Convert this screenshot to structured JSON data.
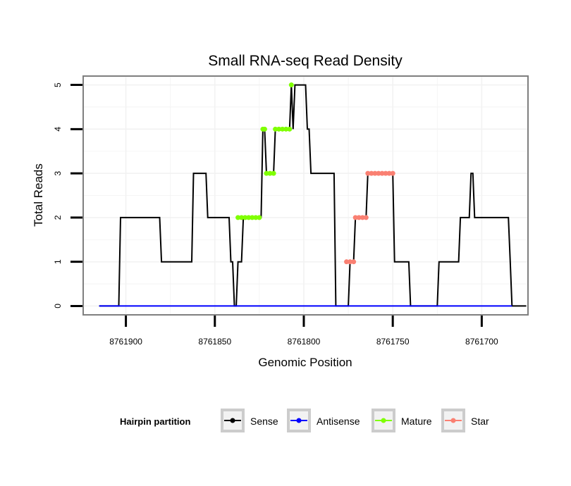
{
  "chart_data": {
    "type": "line",
    "title": "Small RNA-seq Read Density",
    "xlabel": "Genomic Position",
    "ylabel": "Total Reads",
    "xlim": [
      8761924,
      8761674
    ],
    "x_reversed": true,
    "ylim": [
      -0.2,
      5.2
    ],
    "x_ticks": [
      8761900,
      8761850,
      8761800,
      8761750,
      8761700
    ],
    "x_tick_labels": [
      "8761900",
      "8761850",
      "8761800",
      "8761750",
      "8761700"
    ],
    "y_ticks": [
      0,
      1,
      2,
      3,
      4,
      5
    ],
    "y_tick_labels": [
      "0",
      "1",
      "2",
      "3",
      "4",
      "5"
    ],
    "grid": true,
    "legend": {
      "title": "Hairpin partition",
      "placement": "bottom",
      "entries": [
        {
          "label": "Sense",
          "color": "#000000"
        },
        {
          "label": "Antisense",
          "color": "#0000ff"
        },
        {
          "label": "Mature",
          "color": "#7fff00"
        },
        {
          "label": "Star",
          "color": "#fa8072"
        }
      ]
    },
    "series": [
      {
        "name": "Sense",
        "color": "#000000",
        "kind": "line",
        "points": [
          [
            8761915,
            0
          ],
          [
            8761904,
            0
          ],
          [
            8761903,
            2
          ],
          [
            8761881,
            2
          ],
          [
            8761880,
            1
          ],
          [
            8761863,
            1
          ],
          [
            8761862,
            3
          ],
          [
            8761855,
            3
          ],
          [
            8761854,
            2
          ],
          [
            8761842,
            2
          ],
          [
            8761841,
            1
          ],
          [
            8761840,
            1
          ],
          [
            8761839,
            0
          ],
          [
            8761838,
            0
          ],
          [
            8761837,
            1
          ],
          [
            8761835,
            1
          ],
          [
            8761834,
            2
          ],
          [
            8761824,
            2
          ],
          [
            8761823,
            4
          ],
          [
            8761822,
            4
          ],
          [
            8761821,
            3
          ],
          [
            8761817,
            3
          ],
          [
            8761816,
            4
          ],
          [
            8761808,
            4
          ],
          [
            8761807,
            5
          ],
          [
            8761806,
            4
          ],
          [
            8761805,
            5
          ],
          [
            8761799,
            5
          ],
          [
            8761798,
            4
          ],
          [
            8761797,
            4
          ],
          [
            8761796,
            3
          ],
          [
            8761783,
            3
          ],
          [
            8761782,
            0
          ],
          [
            8761775,
            0
          ],
          [
            8761774,
            1
          ],
          [
            8761772,
            1
          ],
          [
            8761771,
            2
          ],
          [
            8761765,
            2
          ],
          [
            8761764,
            3
          ],
          [
            8761750,
            3
          ],
          [
            8761749,
            1
          ],
          [
            8761741,
            1
          ],
          [
            8761740,
            0
          ],
          [
            8761725,
            0
          ],
          [
            8761724,
            1
          ],
          [
            8761713,
            1
          ],
          [
            8761712,
            2
          ],
          [
            8761707,
            2
          ],
          [
            8761706,
            3
          ],
          [
            8761705,
            3
          ],
          [
            8761704,
            2
          ],
          [
            8761685,
            2
          ],
          [
            8761684,
            1
          ],
          [
            8761683,
            0
          ],
          [
            8761675,
            0
          ]
        ]
      },
      {
        "name": "Antisense",
        "color": "#0000ff",
        "kind": "line",
        "points": [
          [
            8761915,
            0
          ],
          [
            8761683,
            0
          ]
        ]
      },
      {
        "name": "Mature",
        "color": "#7fff00",
        "kind": "points",
        "points": [
          [
            8761837,
            2
          ],
          [
            8761835,
            2
          ],
          [
            8761833,
            2
          ],
          [
            8761831,
            2
          ],
          [
            8761829,
            2
          ],
          [
            8761827,
            2
          ],
          [
            8761825,
            2
          ],
          [
            8761823,
            4
          ],
          [
            8761822,
            4
          ],
          [
            8761821,
            3
          ],
          [
            8761819,
            3
          ],
          [
            8761817,
            3
          ],
          [
            8761816,
            4
          ],
          [
            8761814,
            4
          ],
          [
            8761812,
            4
          ],
          [
            8761810,
            4
          ],
          [
            8761808,
            4
          ],
          [
            8761807,
            5
          ]
        ]
      },
      {
        "name": "Star",
        "color": "#fa8072",
        "kind": "points",
        "points": [
          [
            8761776,
            1
          ],
          [
            8761774,
            1
          ],
          [
            8761772,
            1
          ],
          [
            8761771,
            2
          ],
          [
            8761769,
            2
          ],
          [
            8761767,
            2
          ],
          [
            8761765,
            2
          ],
          [
            8761764,
            3
          ],
          [
            8761762,
            3
          ],
          [
            8761760,
            3
          ],
          [
            8761758,
            3
          ],
          [
            8761756,
            3
          ],
          [
            8761754,
            3
          ],
          [
            8761752,
            3
          ],
          [
            8761750,
            3
          ]
        ]
      }
    ]
  }
}
